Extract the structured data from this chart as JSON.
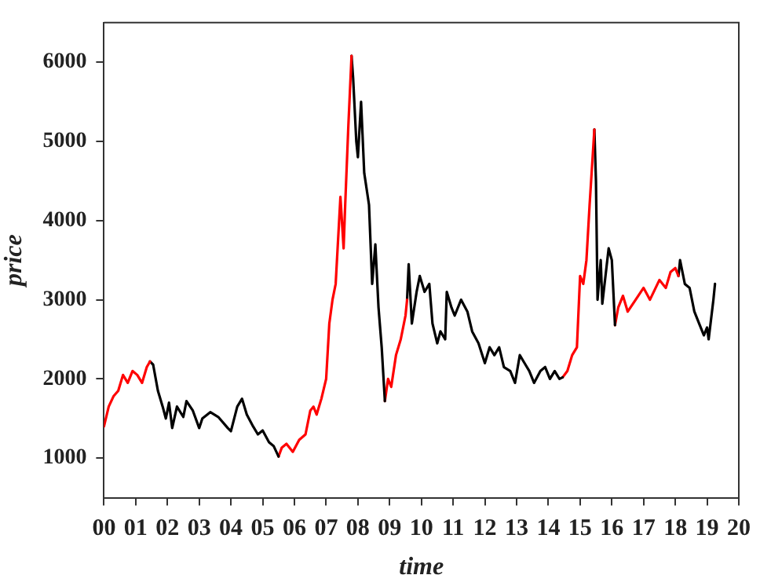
{
  "chart_data": {
    "type": "line",
    "xlabel": "time",
    "ylabel": "price",
    "xlim": [
      0,
      20
    ],
    "ylim": [
      500,
      6500
    ],
    "xticks": [
      {
        "value": 0,
        "label": "00"
      },
      {
        "value": 1,
        "label": "01"
      },
      {
        "value": 2,
        "label": "02"
      },
      {
        "value": 3,
        "label": "03"
      },
      {
        "value": 4,
        "label": "04"
      },
      {
        "value": 5,
        "label": "05"
      },
      {
        "value": 6,
        "label": "06"
      },
      {
        "value": 7,
        "label": "07"
      },
      {
        "value": 8,
        "label": "08"
      },
      {
        "value": 9,
        "label": "09"
      },
      {
        "value": 10,
        "label": "10"
      },
      {
        "value": 11,
        "label": "11"
      },
      {
        "value": 12,
        "label": "12"
      },
      {
        "value": 13,
        "label": "13"
      },
      {
        "value": 14,
        "label": "14"
      },
      {
        "value": 15,
        "label": "15"
      },
      {
        "value": 16,
        "label": "16"
      },
      {
        "value": 17,
        "label": "17"
      },
      {
        "value": 18,
        "label": "18"
      },
      {
        "value": 19,
        "label": "19"
      },
      {
        "value": 20,
        "label": "20"
      }
    ],
    "yticks": [
      1000,
      2000,
      3000,
      4000,
      5000,
      6000
    ],
    "grid": false,
    "legend": false,
    "marker": "none",
    "line_style": "solid",
    "series": [
      {
        "color": "#ff0000",
        "x": [
          0,
          0.15,
          0.3,
          0.45,
          0.6,
          0.75,
          0.9,
          1.05,
          1.2,
          1.35,
          1.45
        ],
        "values": [
          1400,
          1650,
          1780,
          1850,
          2050,
          1950,
          2100,
          2050,
          1950,
          2150,
          2220
        ]
      },
      {
        "color": "#000000",
        "x": [
          1.45,
          1.55,
          1.7,
          1.85,
          1.95,
          2.05,
          2.15,
          2.3,
          2.5,
          2.6,
          2.8,
          3.0,
          3.1,
          3.35,
          3.6,
          3.9,
          4.0,
          4.2,
          4.35,
          4.5,
          4.7,
          4.85,
          5.0,
          5.2,
          5.35,
          5.5
        ],
        "values": [
          2220,
          2180,
          1850,
          1650,
          1500,
          1700,
          1380,
          1650,
          1520,
          1720,
          1600,
          1380,
          1500,
          1580,
          1520,
          1380,
          1340,
          1650,
          1750,
          1550,
          1400,
          1300,
          1350,
          1200,
          1150,
          1020
        ]
      },
      {
        "color": "#ff0000",
        "x": [
          5.5,
          5.6,
          5.75,
          5.95,
          6.15,
          6.35,
          6.5,
          6.6,
          6.7,
          6.85,
          7.0,
          7.1,
          7.2,
          7.3,
          7.45,
          7.55,
          7.6,
          7.7,
          7.8
        ],
        "values": [
          1020,
          1130,
          1180,
          1080,
          1230,
          1300,
          1600,
          1650,
          1550,
          1750,
          2000,
          2700,
          3000,
          3200,
          4300,
          3650,
          4200,
          5200,
          6080
        ]
      },
      {
        "color": "#000000",
        "x": [
          7.8,
          7.85,
          7.95,
          8.0,
          8.1,
          8.2,
          8.35,
          8.45,
          8.55,
          8.65,
          8.75,
          8.85
        ],
        "values": [
          6080,
          5800,
          5000,
          4800,
          5500,
          4600,
          4200,
          3200,
          3700,
          2900,
          2400,
          1720
        ]
      },
      {
        "color": "#ff0000",
        "x": [
          8.85,
          8.95,
          9.05,
          9.2,
          9.35,
          9.5,
          9.55
        ],
        "values": [
          1720,
          2000,
          1900,
          2300,
          2500,
          2800,
          3000
        ]
      },
      {
        "color": "#000000",
        "x": [
          9.55,
          9.6,
          9.7,
          9.85,
          9.95,
          10.1,
          10.25,
          10.35,
          10.5,
          10.6,
          10.75,
          10.8,
          10.95,
          11.05,
          11.25,
          11.45,
          11.6,
          11.8,
          12.0,
          12.15,
          12.3,
          12.45,
          12.6,
          12.8,
          12.95,
          13.1,
          13.25,
          13.4,
          13.55,
          13.75,
          13.9,
          14.05,
          14.2,
          14.35,
          14.45
        ],
        "values": [
          3000,
          3450,
          2700,
          3100,
          3300,
          3100,
          3200,
          2700,
          2450,
          2600,
          2500,
          3100,
          2900,
          2800,
          3000,
          2850,
          2600,
          2450,
          2200,
          2400,
          2300,
          2400,
          2150,
          2100,
          1950,
          2300,
          2200,
          2100,
          1950,
          2100,
          2150,
          2000,
          2100,
          2000,
          2020
        ]
      },
      {
        "color": "#ff0000",
        "x": [
          14.45,
          14.6,
          14.75,
          14.9,
          15.0,
          15.1,
          15.2,
          15.3,
          15.45
        ],
        "values": [
          2020,
          2100,
          2300,
          2400,
          3300,
          3200,
          3500,
          4200,
          5150
        ]
      },
      {
        "color": "#000000",
        "x": [
          15.45,
          15.5,
          15.55,
          15.65,
          15.7,
          15.8,
          15.9,
          16.0,
          16.1
        ],
        "values": [
          5150,
          4500,
          3000,
          3500,
          2950,
          3300,
          3650,
          3500,
          2680
        ]
      },
      {
        "color": "#ff0000",
        "x": [
          16.1,
          16.2,
          16.35,
          16.5,
          16.75,
          17.0,
          17.2,
          17.5,
          17.7,
          17.85,
          18.0,
          18.1
        ],
        "values": [
          2680,
          2900,
          3050,
          2850,
          3000,
          3150,
          3000,
          3250,
          3150,
          3350,
          3400,
          3300
        ]
      },
      {
        "color": "#000000",
        "x": [
          18.1,
          18.15,
          18.3,
          18.45,
          18.6,
          18.75,
          18.9,
          19.0,
          19.05,
          19.2,
          19.25
        ],
        "values": [
          3300,
          3500,
          3200,
          3150,
          2850,
          2700,
          2550,
          2650,
          2500,
          3000,
          3200
        ]
      }
    ]
  }
}
